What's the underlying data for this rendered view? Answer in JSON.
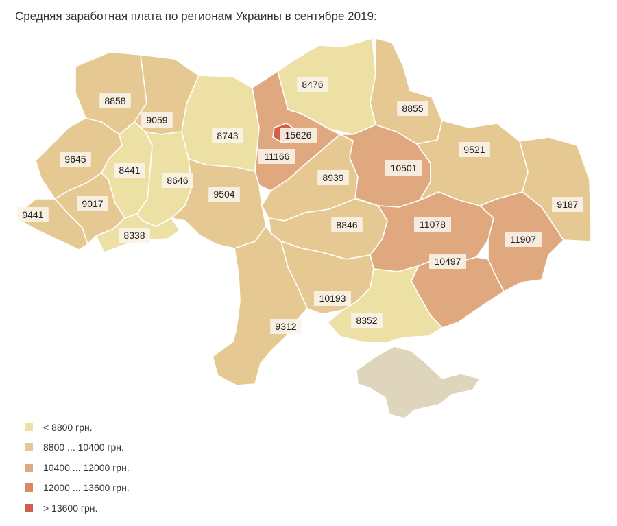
{
  "title": "Средняя заработная плата по регионам Украины в сентябре 2019:",
  "legend": [
    {
      "label": "< 8800 грн.",
      "color": "#ece0a4"
    },
    {
      "label": "8800 ... 10400 грн.",
      "color": "#e6c992"
    },
    {
      "label": "10400 ... 12000 грн.",
      "color": "#dfa87e"
    },
    {
      "label": "12000 ... 13600 грн.",
      "color": "#d98c64"
    },
    {
      "label": "> 13600 грн.",
      "color": "#d0604a"
    }
  ],
  "no_data_color": "#dfd5bc",
  "regions": [
    {
      "id": "volyn",
      "value": "8858",
      "bin": 1
    },
    {
      "id": "rivne",
      "value": "9059",
      "bin": 1
    },
    {
      "id": "zhytomyr",
      "value": "8743",
      "bin": 0
    },
    {
      "id": "chernihiv",
      "value": "8476",
      "bin": 0
    },
    {
      "id": "sumy",
      "value": "8855",
      "bin": 1
    },
    {
      "id": "kyiv-city",
      "value": "15626",
      "bin": 4
    },
    {
      "id": "kyiv-oblast",
      "value": "11166",
      "bin": 2
    },
    {
      "id": "lviv",
      "value": "9645",
      "bin": 1
    },
    {
      "id": "ternopil",
      "value": "8441",
      "bin": 0
    },
    {
      "id": "khmelnytskyi",
      "value": "8646",
      "bin": 0
    },
    {
      "id": "vinnytsia",
      "value": "9504",
      "bin": 1
    },
    {
      "id": "cherkasy",
      "value": "8939",
      "bin": 1
    },
    {
      "id": "poltava",
      "value": "10501",
      "bin": 2
    },
    {
      "id": "kharkiv",
      "value": "9521",
      "bin": 1
    },
    {
      "id": "luhansk",
      "value": "9187",
      "bin": 1
    },
    {
      "id": "zakarpattia",
      "value": "9441",
      "bin": 1
    },
    {
      "id": "ivano-frankivsk",
      "value": "9017",
      "bin": 1
    },
    {
      "id": "chernivtsi",
      "value": "8338",
      "bin": 0
    },
    {
      "id": "kirovohrad",
      "value": "8846",
      "bin": 1
    },
    {
      "id": "dnipropetrovsk",
      "value": "11078",
      "bin": 2
    },
    {
      "id": "donetsk",
      "value": "11907",
      "bin": 2
    },
    {
      "id": "zaporizhzhia",
      "value": "10497",
      "bin": 2
    },
    {
      "id": "mykolaiv",
      "value": "10193",
      "bin": 1
    },
    {
      "id": "odesa",
      "value": "9312",
      "bin": 1
    },
    {
      "id": "kherson",
      "value": "8352",
      "bin": 0
    },
    {
      "id": "crimea",
      "value": "",
      "bin": -1
    }
  ]
}
